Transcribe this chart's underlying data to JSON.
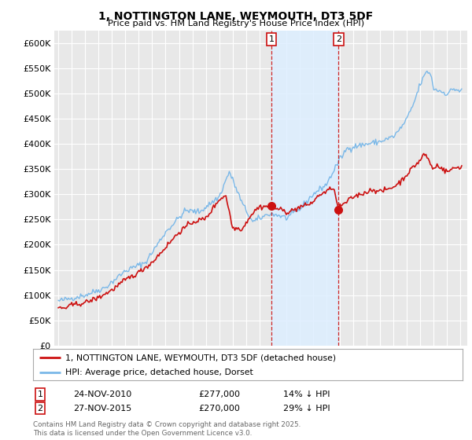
{
  "title": "1, NOTTINGTON LANE, WEYMOUTH, DT3 5DF",
  "subtitle": "Price paid vs. HM Land Registry's House Price Index (HPI)",
  "ylim": [
    0,
    625000
  ],
  "yticks": [
    0,
    50000,
    100000,
    150000,
    200000,
    250000,
    300000,
    350000,
    400000,
    450000,
    500000,
    550000,
    600000
  ],
  "ytick_labels": [
    "£0",
    "£50K",
    "£100K",
    "£150K",
    "£200K",
    "£250K",
    "£300K",
    "£350K",
    "£400K",
    "£450K",
    "£500K",
    "£550K",
    "£600K"
  ],
  "background_color": "#ffffff",
  "plot_bg_color": "#e8e8e8",
  "grid_color": "#ffffff",
  "hpi_color": "#7ab8e8",
  "price_color": "#cc1111",
  "shade_color": "#ddeeff",
  "annotation1_date": "24-NOV-2010",
  "annotation1_price": 277000,
  "annotation1_hpi_pct": "14%",
  "annotation2_date": "27-NOV-2015",
  "annotation2_price": 270000,
  "annotation2_hpi_pct": "29%",
  "legend_label1": "1, NOTTINGTON LANE, WEYMOUTH, DT3 5DF (detached house)",
  "legend_label2": "HPI: Average price, detached house, Dorset",
  "footnote": "Contains HM Land Registry data © Crown copyright and database right 2025.\nThis data is licensed under the Open Government Licence v3.0.",
  "sale1_x": 2010.9,
  "sale1_y": 277000,
  "sale2_x": 2015.9,
  "sale2_y": 270000,
  "vline1_x": 2010.9,
  "vline2_x": 2015.9,
  "xlim_min": 1994.7,
  "xlim_max": 2025.5,
  "xticks": [
    1995,
    1996,
    1997,
    1998,
    1999,
    2000,
    2001,
    2002,
    2003,
    2004,
    2005,
    2006,
    2007,
    2008,
    2009,
    2010,
    2011,
    2012,
    2013,
    2014,
    2015,
    2016,
    2017,
    2018,
    2019,
    2020,
    2021,
    2022,
    2023,
    2024,
    2025
  ]
}
